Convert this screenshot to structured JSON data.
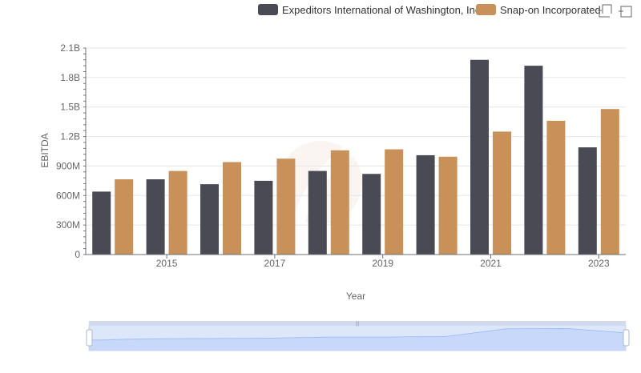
{
  "chart_data": {
    "type": "bar",
    "categories": [
      "2014",
      "2015",
      "2016",
      "2017",
      "2018",
      "2019",
      "2020",
      "2021",
      "2022",
      "2023"
    ],
    "x_tick_labels": [
      "2015",
      "2017",
      "2019",
      "2021",
      "2023"
    ],
    "series": [
      {
        "name": "Expeditors International of Washington, Inc.",
        "color": "#4a4a55",
        "values": [
          640000000,
          765000000,
          715000000,
          750000000,
          850000000,
          820000000,
          1010000000,
          1980000000,
          1920000000,
          1090000000
        ]
      },
      {
        "name": "Snap-on Incorporated",
        "color": "#c8915a",
        "values": [
          765000000,
          850000000,
          940000000,
          975000000,
          1060000000,
          1070000000,
          995000000,
          1250000000,
          1360000000,
          1480000000
        ]
      }
    ],
    "xlabel": "Year",
    "ylabel": "EBITDA",
    "ylim": [
      0,
      2100000000
    ],
    "y_ticks": [
      0,
      300000000,
      600000000,
      900000000,
      1200000000,
      1500000000,
      1800000000,
      2100000000
    ],
    "y_tick_labels": [
      "0",
      "300M",
      "600M",
      "900M",
      "1.2B",
      "1.5B",
      "1.8B",
      "2.1B"
    ],
    "grid": true,
    "legend_position": "top-right"
  },
  "toolbar": {
    "zoom_icon": "zoom-select-icon",
    "restore_icon": "restore-icon"
  },
  "data_zoom": {
    "start": 0,
    "end": 100,
    "handle_label": "|||"
  }
}
